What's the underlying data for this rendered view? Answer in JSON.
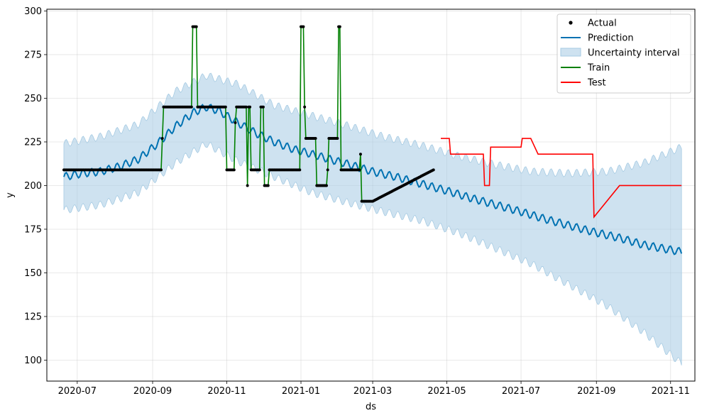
{
  "chart_data": {
    "type": "line",
    "title": "",
    "xlabel": "ds",
    "ylabel": "y",
    "xlim": [
      "2020-06-06",
      "2021-11-21"
    ],
    "ylim": [
      88,
      301
    ],
    "grid": true,
    "legend_position": "top-right",
    "x_ticks": [
      "2020-07-01",
      "2020-09-01",
      "2020-11-01",
      "2021-01-01",
      "2021-03-01",
      "2021-05-01",
      "2021-07-01",
      "2021-09-01",
      "2021-11-01"
    ],
    "x_tick_labels": [
      "2020-07",
      "2020-09",
      "2020-11",
      "2021-01",
      "2021-03",
      "2021-05",
      "2021-07",
      "2021-09",
      "2021-11"
    ],
    "y_ticks": [
      100,
      125,
      150,
      175,
      200,
      225,
      250,
      275,
      300
    ],
    "y_tick_labels": [
      "100",
      "125",
      "150",
      "175",
      "200",
      "225",
      "250",
      "275",
      "300"
    ],
    "legend": [
      {
        "label": "Actual",
        "kind": "dot",
        "color": "#000000"
      },
      {
        "label": "Prediction",
        "kind": "line",
        "color": "#0072B2"
      },
      {
        "label": "Uncertainty interval",
        "kind": "band",
        "color": "#a6cbe3"
      },
      {
        "label": "Train",
        "kind": "line",
        "color": "#008000"
      },
      {
        "label": "Test",
        "kind": "line",
        "color": "#ff0000"
      }
    ],
    "series": [
      {
        "name": "Prediction",
        "color": "#0072B2",
        "points": [
          [
            "2020-06-20",
            205
          ],
          [
            "2020-07-05",
            207
          ],
          [
            "2020-07-20",
            208
          ],
          [
            "2020-08-05",
            211
          ],
          [
            "2020-08-20",
            215
          ],
          [
            "2020-09-05",
            224
          ],
          [
            "2020-09-20",
            234
          ],
          [
            "2020-10-05",
            242
          ],
          [
            "2020-10-15",
            245
          ],
          [
            "2020-10-25",
            243
          ],
          [
            "2020-11-10",
            236
          ],
          [
            "2020-11-25",
            230
          ],
          [
            "2020-12-10",
            225
          ],
          [
            "2020-12-25",
            221
          ],
          [
            "2021-01-10",
            218
          ],
          [
            "2021-01-25",
            215
          ],
          [
            "2021-02-10",
            212
          ],
          [
            "2021-03-01",
            208
          ],
          [
            "2021-03-20",
            205
          ],
          [
            "2021-04-10",
            201
          ],
          [
            "2021-05-01",
            197
          ],
          [
            "2021-05-20",
            193
          ],
          [
            "2021-06-10",
            189
          ],
          [
            "2021-07-01",
            185
          ],
          [
            "2021-07-20",
            181
          ],
          [
            "2021-08-10",
            177
          ],
          [
            "2021-09-01",
            173
          ],
          [
            "2021-09-20",
            170
          ],
          [
            "2021-10-10",
            166
          ],
          [
            "2021-11-10",
            162
          ]
        ]
      },
      {
        "name": "Uncertainty interval",
        "color": "#a6cbe3",
        "lower": [
          [
            "2020-06-20",
            186
          ],
          [
            "2020-07-20",
            189
          ],
          [
            "2020-08-20",
            196
          ],
          [
            "2020-09-20",
            213
          ],
          [
            "2020-10-15",
            224
          ],
          [
            "2020-11-10",
            214
          ],
          [
            "2020-12-10",
            205
          ],
          [
            "2021-01-10",
            196
          ],
          [
            "2021-02-10",
            190
          ],
          [
            "2021-03-10",
            185
          ],
          [
            "2021-04-10",
            180
          ],
          [
            "2021-05-10",
            173
          ],
          [
            "2021-06-10",
            164
          ],
          [
            "2021-07-10",
            155
          ],
          [
            "2021-08-10",
            143
          ],
          [
            "2021-09-10",
            131
          ],
          [
            "2021-10-10",
            116
          ],
          [
            "2021-11-10",
            98
          ]
        ],
        "upper": [
          [
            "2020-06-20",
            224
          ],
          [
            "2020-07-20",
            228
          ],
          [
            "2020-08-20",
            235
          ],
          [
            "2020-09-20",
            254
          ],
          [
            "2020-10-15",
            263
          ],
          [
            "2020-11-10",
            258
          ],
          [
            "2020-12-10",
            246
          ],
          [
            "2021-01-10",
            240
          ],
          [
            "2021-02-10",
            234
          ],
          [
            "2021-03-10",
            228
          ],
          [
            "2021-04-10",
            223
          ],
          [
            "2021-05-10",
            217
          ],
          [
            "2021-06-10",
            212
          ],
          [
            "2021-07-10",
            208
          ],
          [
            "2021-08-10",
            207
          ],
          [
            "2021-09-10",
            208
          ],
          [
            "2021-10-10",
            213
          ],
          [
            "2021-11-10",
            222
          ]
        ]
      },
      {
        "name": "Train",
        "color": "#008000",
        "points": [
          [
            "2020-06-20",
            209
          ],
          [
            "2020-09-08",
            209
          ],
          [
            "2020-09-10",
            245
          ],
          [
            "2020-10-03",
            245
          ],
          [
            "2020-10-04",
            291
          ],
          [
            "2020-10-07",
            291
          ],
          [
            "2020-10-08",
            245
          ],
          [
            "2020-10-31",
            245
          ],
          [
            "2020-11-01",
            209
          ],
          [
            "2020-11-07",
            209
          ],
          [
            "2020-11-08",
            236
          ],
          [
            "2020-11-09",
            245
          ],
          [
            "2020-11-17",
            245
          ],
          [
            "2020-11-18",
            200
          ],
          [
            "2020-11-19",
            245
          ],
          [
            "2020-11-20",
            245
          ],
          [
            "2020-11-21",
            209
          ],
          [
            "2020-11-28",
            209
          ],
          [
            "2020-11-29",
            245
          ],
          [
            "2020-12-01",
            245
          ],
          [
            "2020-12-02",
            200
          ],
          [
            "2020-12-05",
            200
          ],
          [
            "2020-12-06",
            209
          ],
          [
            "2020-12-31",
            209
          ],
          [
            "2021-01-01",
            291
          ],
          [
            "2021-01-03",
            291
          ],
          [
            "2021-01-04",
            245
          ],
          [
            "2021-01-05",
            227
          ],
          [
            "2021-01-13",
            227
          ],
          [
            "2021-01-14",
            200
          ],
          [
            "2021-01-22",
            200
          ],
          [
            "2021-01-23",
            209
          ],
          [
            "2021-01-24",
            227
          ],
          [
            "2021-01-31",
            227
          ],
          [
            "2021-02-01",
            291
          ],
          [
            "2021-02-02",
            291
          ],
          [
            "2021-02-03",
            209
          ],
          [
            "2021-02-18",
            209
          ],
          [
            "2021-02-19",
            218
          ],
          [
            "2021-02-20",
            191
          ],
          [
            "2021-03-01",
            191
          ],
          [
            "2021-04-20",
            209
          ]
        ]
      },
      {
        "name": "Test",
        "color": "#ff0000",
        "points": [
          [
            "2021-04-26",
            227
          ],
          [
            "2021-05-03",
            227
          ],
          [
            "2021-05-04",
            218
          ],
          [
            "2021-05-31",
            218
          ],
          [
            "2021-06-01",
            200
          ],
          [
            "2021-06-05",
            200
          ],
          [
            "2021-06-06",
            222
          ],
          [
            "2021-07-01",
            222
          ],
          [
            "2021-07-02",
            227
          ],
          [
            "2021-07-09",
            227
          ],
          [
            "2021-07-15",
            218
          ],
          [
            "2021-08-29",
            218
          ],
          [
            "2021-08-30",
            182
          ],
          [
            "2021-09-20",
            200
          ],
          [
            "2021-11-10",
            200
          ]
        ]
      }
    ]
  }
}
